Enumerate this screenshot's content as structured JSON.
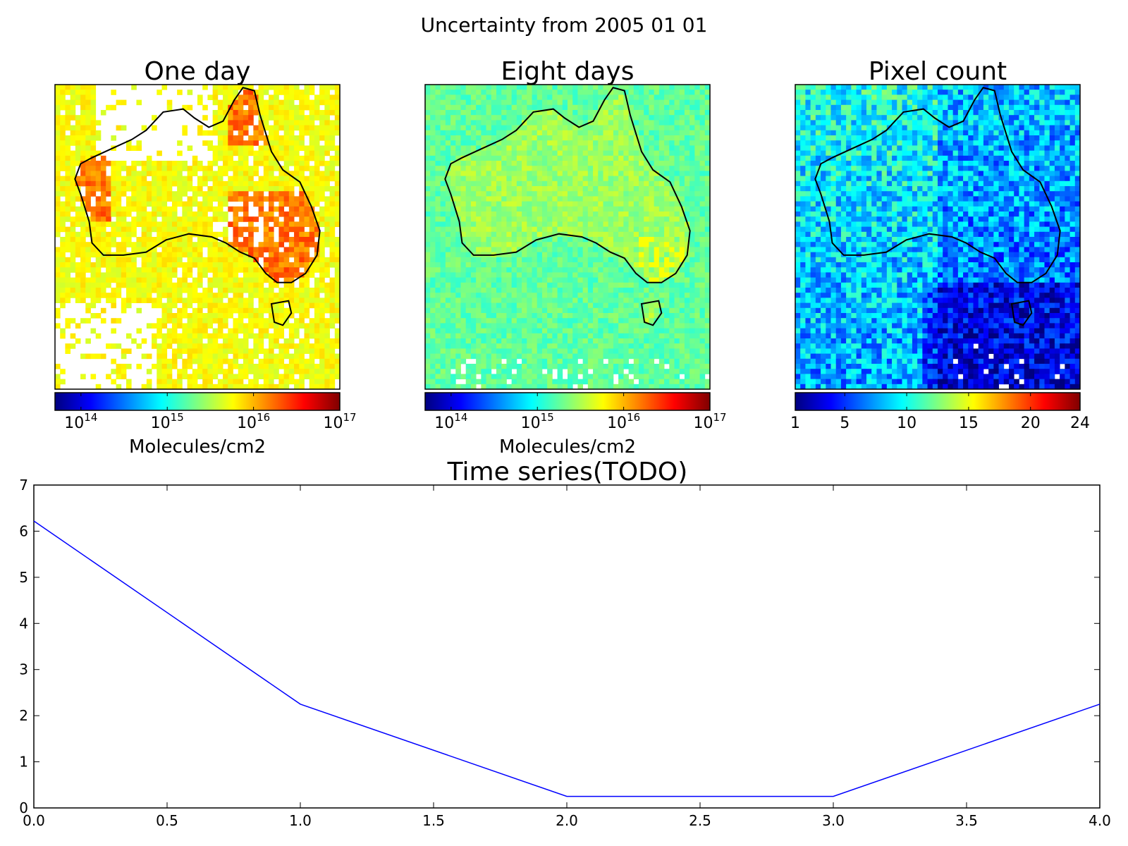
{
  "figure": {
    "suptitle": "Uncertainty from 2005 01 01"
  },
  "colors": {
    "jet": [
      "#00007f",
      "#0000ff",
      "#007fff",
      "#00ffff",
      "#7fff7f",
      "#ffff00",
      "#ff7f00",
      "#ff0000",
      "#7f0000"
    ],
    "coastline": "#000000",
    "line": "#0000ff",
    "nodata": "#ffffff"
  },
  "chart_data": [
    {
      "type": "heatmap",
      "title": "One day",
      "colorbar": {
        "scale": "log",
        "range": [
          50000000000000.0,
          1e+17
        ],
        "ticks": [
          {
            "value": 100000000000000.0,
            "base": "10",
            "exp": "14"
          },
          {
            "value": 1000000000000000.0,
            "base": "10",
            "exp": "15"
          },
          {
            "value": 1e+16,
            "base": "10",
            "exp": "16"
          },
          {
            "value": 1e+17,
            "base": "10",
            "exp": "17"
          }
        ],
        "label": "Molecules/cm2"
      },
      "map": "Australia",
      "dominant_levels": "green–orange (approx. 10^15 – 10^16.5), large no-data gaps"
    },
    {
      "type": "heatmap",
      "title": "Eight days",
      "colorbar": {
        "scale": "log",
        "range": [
          50000000000000.0,
          1e+17
        ],
        "ticks": [
          {
            "value": 100000000000000.0,
            "base": "10",
            "exp": "14"
          },
          {
            "value": 1000000000000000.0,
            "base": "10",
            "exp": "15"
          },
          {
            "value": 1e+16,
            "base": "10",
            "exp": "16"
          },
          {
            "value": 1e+17,
            "base": "10",
            "exp": "17"
          }
        ],
        "label": "Molecules/cm2"
      },
      "map": "Australia",
      "dominant_levels": "cyan–green (approx. 10^15)"
    },
    {
      "type": "heatmap",
      "title": "Pixel count",
      "colorbar": {
        "scale": "linear",
        "range": [
          1,
          24
        ],
        "ticks": [
          {
            "value": 1,
            "label": "1"
          },
          {
            "value": 5,
            "label": "5"
          },
          {
            "value": 10,
            "label": "10"
          },
          {
            "value": 15,
            "label": "15"
          },
          {
            "value": 20,
            "label": "20"
          },
          {
            "value": 24,
            "label": "24"
          }
        ],
        "label": ""
      },
      "map": "Australia",
      "dominant_levels": "blue–cyan (approx. 3–12)"
    },
    {
      "type": "line",
      "title": "Time series(TODO)",
      "xlabel": "",
      "ylabel": "",
      "xlim": [
        0.0,
        4.0
      ],
      "ylim": [
        0,
        7
      ],
      "xticks": [
        "0.0",
        "0.5",
        "1.0",
        "1.5",
        "2.0",
        "2.5",
        "3.0",
        "3.5",
        "4.0"
      ],
      "yticks": [
        "0",
        "1",
        "2",
        "3",
        "4",
        "5",
        "6",
        "7"
      ],
      "series": [
        {
          "x": [
            0,
            1,
            2,
            3,
            4
          ],
          "y": [
            6.22,
            2.25,
            0.25,
            0.25,
            2.25
          ]
        }
      ]
    }
  ]
}
